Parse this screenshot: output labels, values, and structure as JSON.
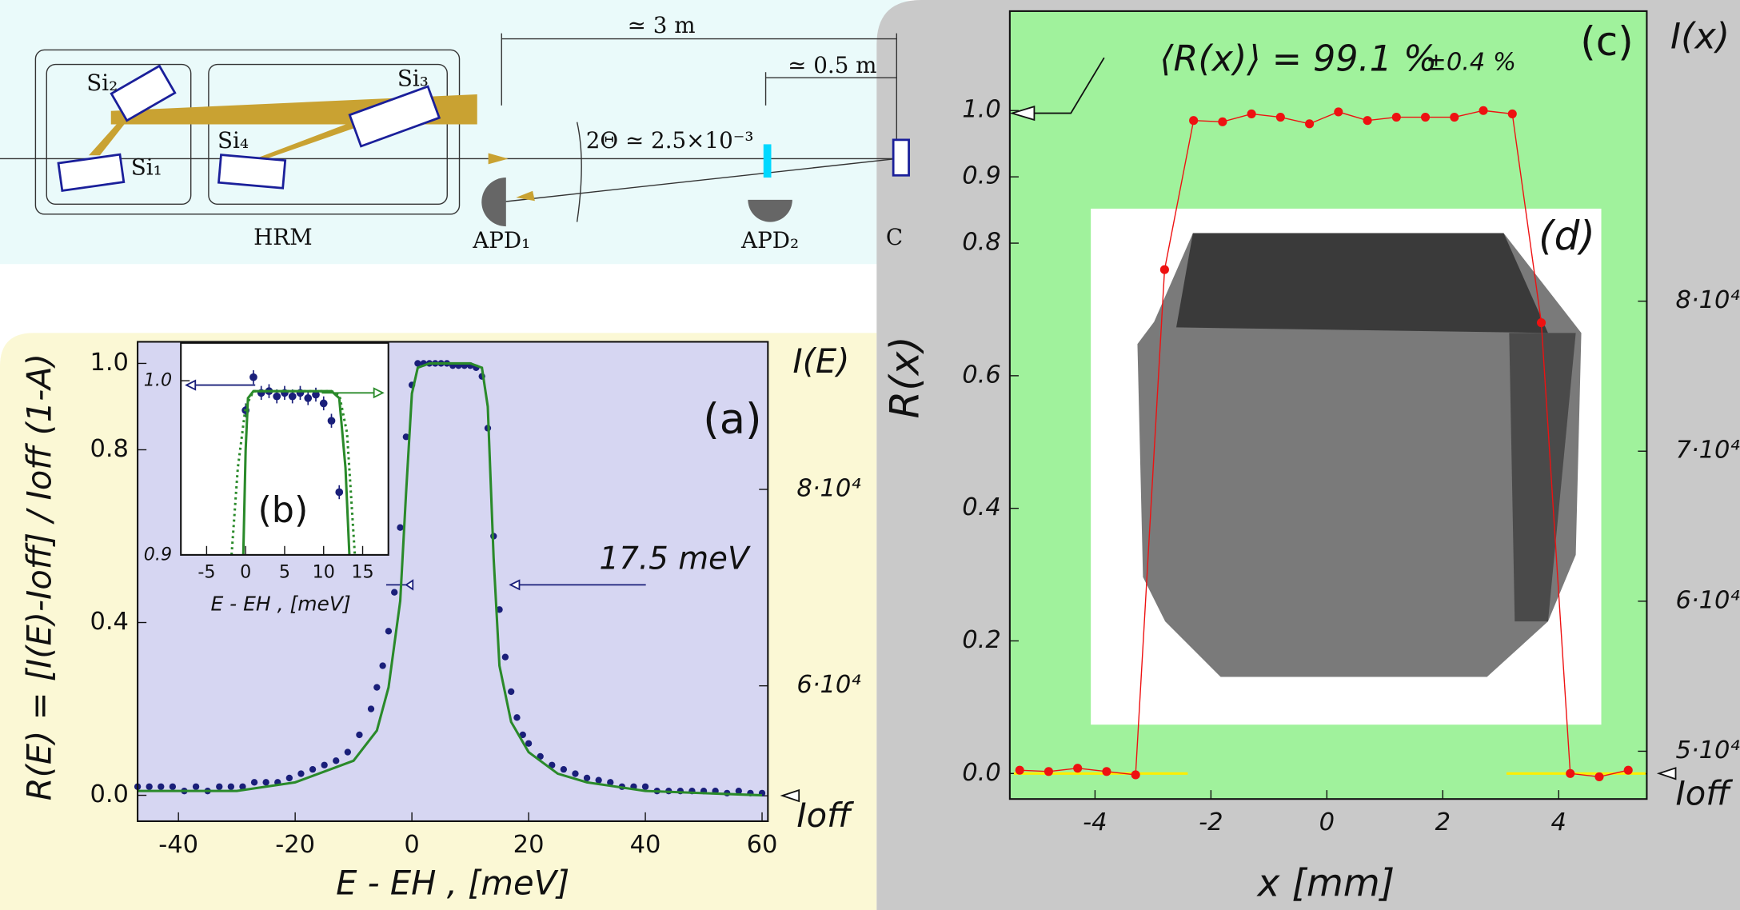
{
  "diagram": {
    "distance_long": "≃ 3 m",
    "distance_short": "≃ 0.5 m",
    "si2": "Si₂",
    "si3": "Si₃",
    "si1": "Si₁",
    "si4": "Si₄",
    "angle": "2Θ ≃ 2.5×10⁻³",
    "hrm": "HRM",
    "apd1": "APD₁",
    "apd2": "APD₂",
    "crystal": "C"
  },
  "chart_data": [
    {
      "type": "scatter",
      "title": "(a)",
      "xlabel": "E - EH , [meV]",
      "ylabel": "R(E) = [I(E)-Ioff] / Ioff (1-A)",
      "y2label": "I(E)",
      "annotation": "17.5 meV",
      "xlim": [
        -47,
        61
      ],
      "ylim": [
        -0.06,
        1.05
      ],
      "y2lim": [
        46215,
        95028
      ],
      "xticks": [
        -40,
        -20,
        0,
        20,
        40,
        60
      ],
      "yticks": [
        {
          "value": 0,
          "label": "0.0"
        },
        0.4,
        0.8,
        {
          "value": 1,
          "label": "1.0"
        }
      ],
      "y2ticks": [
        {
          "value": 80000,
          "label": "8·10⁴"
        },
        {
          "value": 60000,
          "label": "6·10⁴"
        },
        {
          "value": 48800,
          "label": "Ioff"
        }
      ],
      "series": [
        {
          "mode": "markers",
          "color": "#1a1f7a",
          "x": [
            -47,
            -45,
            -43,
            -41,
            -39,
            -37,
            -35,
            -33,
            -31,
            -29,
            -27,
            -25,
            -23,
            -21,
            -19,
            -17,
            -15,
            -13,
            -11,
            -9,
            -7,
            -6,
            -5,
            -4,
            -3,
            -2,
            -1,
            0,
            1,
            2,
            3,
            4,
            5,
            6,
            7,
            8,
            9,
            10,
            11,
            12,
            13,
            14,
            15,
            16,
            17,
            18,
            19,
            20,
            22,
            24,
            26,
            28,
            30,
            32,
            34,
            36,
            38,
            40,
            42,
            44,
            46,
            48,
            50,
            52,
            54,
            56,
            58,
            60
          ],
          "values": [
            0.02,
            0.02,
            0.02,
            0.02,
            0.01,
            0.02,
            0.01,
            0.02,
            0.02,
            0.02,
            0.03,
            0.03,
            0.03,
            0.04,
            0.05,
            0.06,
            0.07,
            0.08,
            0.1,
            0.14,
            0.2,
            0.25,
            0.3,
            0.38,
            0.47,
            0.62,
            0.83,
            0.95,
            1.0,
            1.0,
            1.0,
            1.0,
            1.0,
            1.0,
            0.995,
            0.995,
            0.995,
            0.995,
            0.99,
            0.97,
            0.85,
            0.6,
            0.43,
            0.32,
            0.24,
            0.18,
            0.14,
            0.12,
            0.09,
            0.07,
            0.06,
            0.05,
            0.04,
            0.035,
            0.03,
            0.02,
            0.02,
            0.02,
            0.01,
            0.01,
            0.01,
            0.01,
            0.01,
            0.01,
            0.005,
            0.01,
            0.005,
            0.005
          ]
        },
        {
          "mode": "line",
          "color": "#2a8a2a",
          "x": [
            -47,
            -30,
            -20,
            -10,
            -6,
            -4,
            -2,
            -1,
            0,
            1,
            3,
            10,
            12,
            13,
            14,
            15,
            17,
            20,
            25,
            30,
            40,
            60
          ],
          "values": [
            0.01,
            0.01,
            0.03,
            0.08,
            0.15,
            0.25,
            0.45,
            0.7,
            0.93,
            0.99,
            1.0,
            1.0,
            0.99,
            0.9,
            0.55,
            0.3,
            0.17,
            0.1,
            0.05,
            0.03,
            0.01,
            0.0
          ]
        }
      ]
    },
    {
      "type": "scatter",
      "title": "(b)",
      "xlabel": "E - EH , [meV]",
      "xlim": [
        -8.3,
        18.3
      ],
      "ylim": [
        0.9,
        1.0217
      ],
      "xticks": [
        -5,
        0,
        5,
        10,
        15
      ],
      "yticks": [
        0.9,
        {
          "value": 1,
          "label": "1.0"
        }
      ],
      "series": [
        {
          "mode": "markers",
          "color": "#1a1f7a",
          "x": [
            0,
            1,
            2,
            3,
            4,
            5,
            6,
            7,
            8,
            9,
            10,
            11,
            12
          ],
          "values": [
            0.983,
            1.002,
            0.993,
            0.994,
            0.991,
            0.993,
            0.991,
            0.993,
            0.99,
            0.992,
            0.987,
            0.977,
            0.936
          ],
          "errors": [
            0.004,
            0.004,
            0.004,
            0.004,
            0.004,
            0.004,
            0.004,
            0.004,
            0.004,
            0.004,
            0.004,
            0.004,
            0.004
          ]
        },
        {
          "mode": "line",
          "color": "#2a8a2a",
          "x": [
            -0.3,
            0,
            0.3,
            1,
            11,
            12,
            12.8,
            13.3
          ],
          "values": [
            0.9,
            0.96,
            0.99,
            0.994,
            0.994,
            0.99,
            0.95,
            0.9
          ]
        },
        {
          "mode": "line",
          "dash": true,
          "color": "#2a8a2a",
          "x": [
            -1.8,
            -1,
            0,
            1,
            11,
            12,
            13,
            14
          ],
          "values": [
            0.9,
            0.95,
            0.985,
            0.994,
            0.994,
            0.992,
            0.97,
            0.9
          ]
        }
      ]
    },
    {
      "type": "scatter",
      "title": "(c)",
      "image_label": "(d)",
      "xlabel": "x [mm]",
      "ylabel": "R(x)",
      "y2label": "I(x)",
      "annotation": "⟨R(x)⟩ = 99.1 %",
      "annotation_error": "±0.4 %",
      "xlim": [
        -5.47,
        5.52
      ],
      "ylim": [
        -0.0385,
        1.15
      ],
      "y2lim": [
        46815,
        99333
      ],
      "xticks": [
        -4,
        -2,
        0,
        2,
        4
      ],
      "yticks": [
        {
          "value": 0,
          "label": "0.0"
        },
        0.2,
        0.4,
        0.6,
        0.8,
        0.9,
        {
          "value": 1,
          "label": "1.0"
        }
      ],
      "y2ticks": [
        {
          "value": 80000,
          "label": "8·10⁴"
        },
        {
          "value": 70000,
          "label": "7·10⁴"
        },
        {
          "value": 60000,
          "label": "6·10⁴"
        },
        {
          "value": 50000,
          "label": "5·10⁴"
        },
        {
          "value": 48500,
          "label": "Ioff"
        }
      ],
      "series": [
        {
          "mode": "line",
          "color": "#ffee00",
          "x": [
            -5.4,
            -2.4
          ],
          "values": [
            0,
            0
          ]
        },
        {
          "mode": "line",
          "color": "#ffee00",
          "x": [
            3.1,
            5.5
          ],
          "values": [
            0,
            0
          ]
        },
        {
          "mode": "markers+line",
          "color": "#ee1111",
          "x": [
            -5.3,
            -4.8,
            -4.3,
            -3.8,
            -3.3,
            -2.8,
            -2.3,
            -1.8,
            -1.3,
            -0.8,
            -0.3,
            0.2,
            0.7,
            1.2,
            1.7,
            2.2,
            2.7,
            3.2,
            3.7,
            4.2,
            4.7,
            5.2
          ],
          "values": [
            0.005,
            0.003,
            0.008,
            0.003,
            -0.002,
            0.76,
            0.985,
            0.983,
            0.995,
            0.99,
            0.98,
            0.998,
            0.985,
            0.99,
            0.99,
            0.99,
            1.0,
            0.995,
            0.68,
            0.0,
            -0.005,
            0.005
          ]
        }
      ]
    }
  ]
}
